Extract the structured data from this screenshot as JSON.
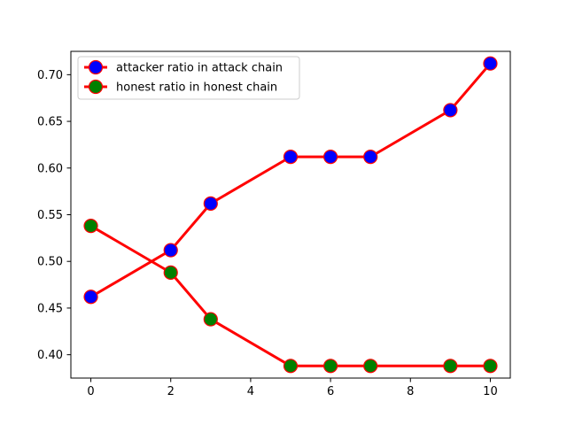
{
  "chart_data": {
    "type": "line",
    "title": "",
    "xlabel": "",
    "ylabel": "",
    "xlim": [
      -0.5,
      10.5
    ],
    "ylim": [
      0.375,
      0.725
    ],
    "xticks": [
      0,
      2,
      4,
      6,
      8,
      10
    ],
    "yticks": [
      0.4,
      0.45,
      0.5,
      0.55,
      0.6,
      0.65,
      0.7
    ],
    "ytick_labels": [
      "0.40",
      "0.45",
      "0.50",
      "0.55",
      "0.60",
      "0.65",
      "0.70"
    ],
    "grid": false,
    "legend_position": "top-left",
    "series": [
      {
        "name": "attacker ratio in attack chain",
        "line_color": "#ff0000",
        "marker_face": "#0000ff",
        "marker_edge": "#ff0000",
        "x": [
          0,
          2,
          3,
          5,
          6,
          7,
          9,
          10
        ],
        "y": [
          0.462,
          0.512,
          0.562,
          0.612,
          0.612,
          0.612,
          0.662,
          0.712
        ]
      },
      {
        "name": "honest ratio in honest chain",
        "line_color": "#ff0000",
        "marker_face": "#008000",
        "marker_edge": "#ff0000",
        "x": [
          0,
          2,
          3,
          5,
          6,
          7,
          9,
          10
        ],
        "y": [
          0.538,
          0.488,
          0.438,
          0.388,
          0.388,
          0.388,
          0.388,
          0.388
        ]
      }
    ]
  }
}
